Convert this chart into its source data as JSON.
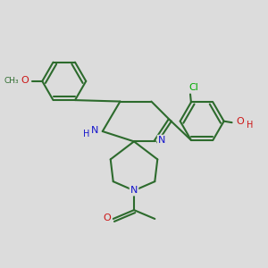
{
  "bg_color": "#dcdcdc",
  "bond_color": "#2d6b2d",
  "N_color": "#1515cc",
  "O_color": "#cc1515",
  "Cl_color": "#00aa00",
  "lw": 1.5,
  "dbo": 0.06,
  "fs": 8.0,
  "figsize": [
    3.0,
    3.0
  ],
  "dpi": 100,
  "xlim": [
    0,
    10
  ],
  "ylim": [
    0,
    10
  ]
}
